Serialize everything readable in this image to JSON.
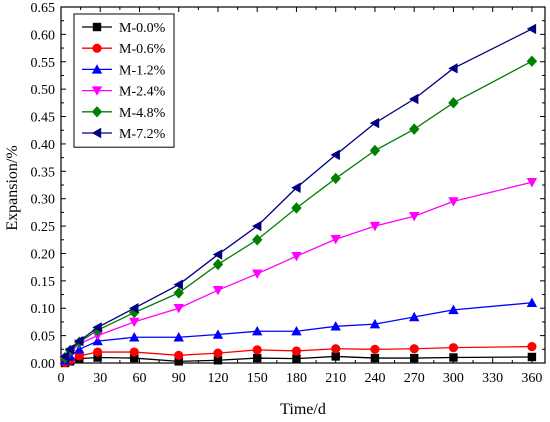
{
  "chart_data": {
    "type": "line",
    "title": "",
    "xlabel": "Time/d",
    "ylabel": "Expansion/%",
    "xlim": [
      0,
      370
    ],
    "ylim": [
      0,
      0.65
    ],
    "xticks": [
      0,
      30,
      60,
      90,
      120,
      150,
      180,
      210,
      240,
      270,
      300,
      330,
      360
    ],
    "yticks": [
      0.0,
      0.05,
      0.1,
      0.15,
      0.2,
      0.25,
      0.3,
      0.35,
      0.4,
      0.45,
      0.5,
      0.55,
      0.6,
      0.65
    ],
    "grid": false,
    "legend_position": "top-left",
    "x": [
      3,
      7,
      14,
      28,
      56,
      90,
      120,
      150,
      180,
      210,
      240,
      270,
      300,
      360
    ],
    "series": [
      {
        "name": "M-0.0%",
        "color": "#000000",
        "marker": "square",
        "values": [
          0.0,
          0.003,
          0.008,
          0.01,
          0.009,
          0.003,
          0.005,
          0.009,
          0.008,
          0.012,
          0.009,
          0.009,
          0.01,
          0.011
        ]
      },
      {
        "name": "M-0.6%",
        "color": "#ff0000",
        "marker": "circle",
        "values": [
          0.001,
          0.005,
          0.013,
          0.02,
          0.02,
          0.014,
          0.018,
          0.024,
          0.022,
          0.026,
          0.025,
          0.026,
          0.028,
          0.03
        ]
      },
      {
        "name": "M-1.2%",
        "color": "#0000ff",
        "marker": "triangle-up",
        "values": [
          0.005,
          0.012,
          0.025,
          0.04,
          0.047,
          0.047,
          0.052,
          0.058,
          0.058,
          0.067,
          0.071,
          0.084,
          0.097,
          0.11
        ]
      },
      {
        "name": "M-2.4%",
        "color": "#ff00ff",
        "marker": "triangle-down",
        "values": [
          0.008,
          0.02,
          0.035,
          0.05,
          0.075,
          0.1,
          0.133,
          0.163,
          0.195,
          0.226,
          0.25,
          0.268,
          0.295,
          0.33
        ]
      },
      {
        "name": "M-4.8%",
        "color": "#008000",
        "marker": "diamond",
        "values": [
          0.01,
          0.023,
          0.038,
          0.06,
          0.092,
          0.128,
          0.18,
          0.225,
          0.283,
          0.337,
          0.388,
          0.427,
          0.475,
          0.551
        ]
      },
      {
        "name": "M-7.2%",
        "color": "#000080",
        "marker": "triangle-left",
        "values": [
          0.012,
          0.025,
          0.04,
          0.065,
          0.1,
          0.143,
          0.198,
          0.25,
          0.32,
          0.38,
          0.438,
          0.482,
          0.538,
          0.61
        ]
      }
    ]
  }
}
